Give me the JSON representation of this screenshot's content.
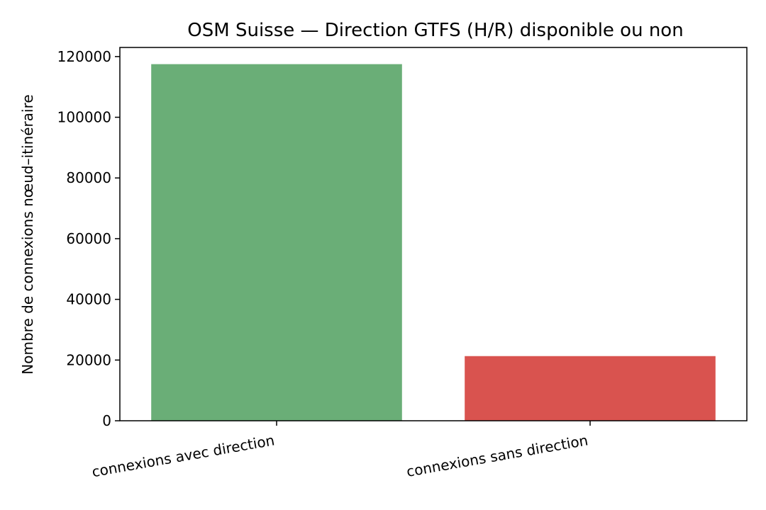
{
  "chart_data": {
    "type": "bar",
    "title": "OSM Suisse — Direction GTFS (H/R) disponible ou non",
    "xlabel": "",
    "ylabel": "Nombre de connexions nœud–itinéraire",
    "categories": [
      "connexions avec direction",
      "connexions sans direction"
    ],
    "values": [
      117500,
      21300
    ],
    "colors": [
      "#6aae77",
      "#d9534f"
    ],
    "ylim": [
      0,
      123000
    ],
    "yticks": [
      0,
      20000,
      40000,
      60000,
      80000,
      100000,
      120000
    ],
    "ytick_labels": [
      "0",
      "20000",
      "40000",
      "60000",
      "80000",
      "100000",
      "120000"
    ],
    "grid": false,
    "legend": "none"
  }
}
